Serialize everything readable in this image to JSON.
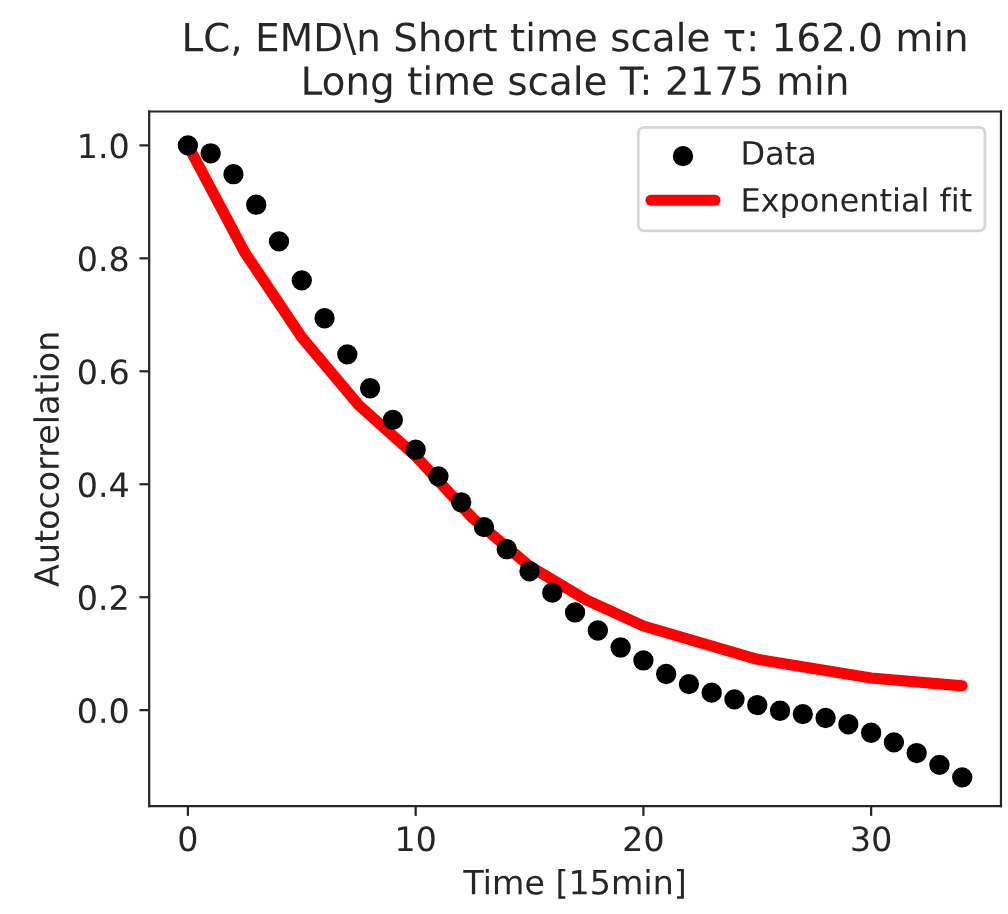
{
  "chart_data": {
    "type": "scatter",
    "title": "LC, EMD\\n Short time scale τ: 162.0 min\nLong time scale T: 2175 min",
    "xlabel": "Time [15min]",
    "ylabel": "Autocorrelation",
    "xlim": [
      -1.7,
      35.7
    ],
    "ylim": [
      -0.17,
      1.06
    ],
    "xticks": [
      0,
      10,
      20,
      30
    ],
    "yticks": [
      {
        "value": 0,
        "label": "0.0"
      },
      0.2,
      0.4,
      0.6,
      0.8,
      {
        "value": 1,
        "label": "1.0"
      }
    ],
    "grid": false,
    "legend": "top right",
    "series": [
      {
        "name": "Data",
        "marker": "circle",
        "color": "#000000",
        "x": [
          0,
          1,
          2,
          3,
          4,
          5,
          6,
          7,
          8,
          9,
          10,
          11,
          12,
          13,
          14,
          15,
          16,
          17,
          18,
          19,
          20,
          21,
          22,
          23,
          24,
          25,
          26,
          27,
          28,
          29,
          30,
          31,
          32,
          33,
          34
        ],
        "values": [
          1.0,
          0.986,
          0.949,
          0.895,
          0.83,
          0.761,
          0.694,
          0.63,
          0.57,
          0.514,
          0.461,
          0.414,
          0.368,
          0.324,
          0.285,
          0.246,
          0.208,
          0.173,
          0.141,
          0.111,
          0.088,
          0.064,
          0.046,
          0.031,
          0.019,
          0.009,
          -0.001,
          -0.007,
          -0.014,
          -0.025,
          -0.04,
          -0.057,
          -0.076,
          -0.097,
          -0.119
        ]
      },
      {
        "name": "Exponential fit",
        "type": "line",
        "color": "#ff0000",
        "line_style": "solid",
        "x": [
          0,
          2.5,
          5,
          7.5,
          10,
          12.5,
          15,
          17.5,
          20,
          25,
          30,
          34
        ],
        "values": [
          1.0,
          0.81,
          0.66,
          0.54,
          0.45,
          0.34,
          0.255,
          0.195,
          0.149,
          0.09,
          0.057,
          0.043
        ]
      }
    ]
  }
}
